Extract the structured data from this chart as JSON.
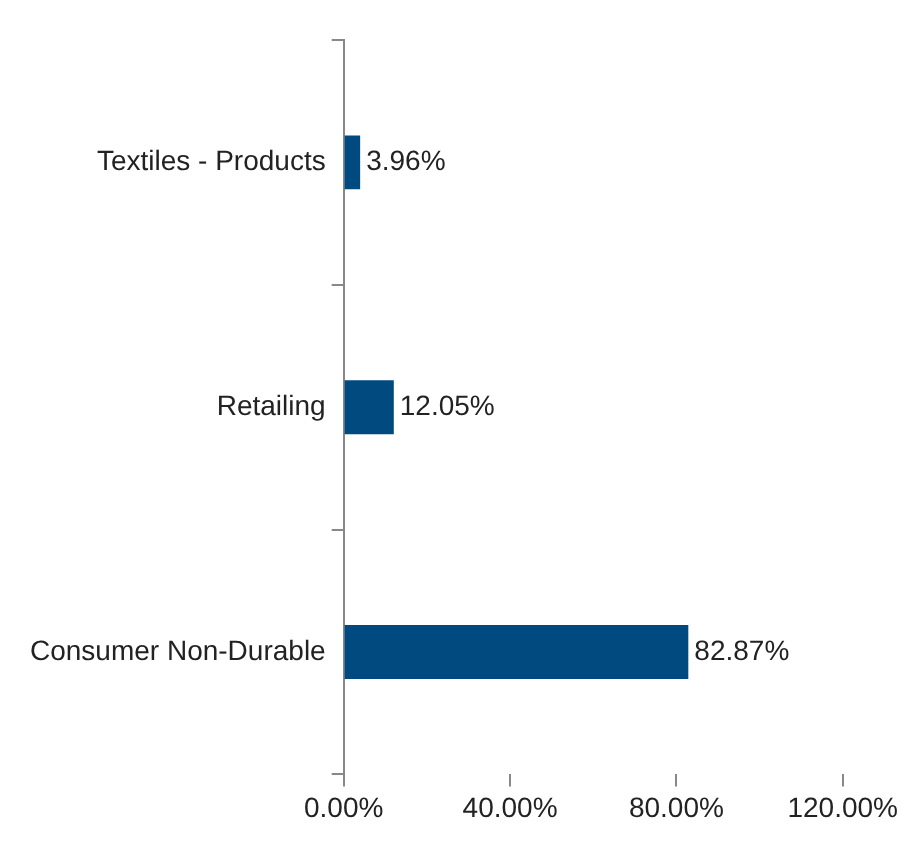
{
  "chart_data": {
    "type": "bar",
    "orientation": "horizontal",
    "categories": [
      "Textiles - Products",
      "Retailing",
      "Consumer Non-Durable"
    ],
    "values": [
      3.96,
      12.05,
      82.87
    ],
    "value_labels": [
      "3.96%",
      "12.05%",
      "82.87%"
    ],
    "color": "#004a80",
    "xlim": [
      0,
      120
    ],
    "xticks": [
      {
        "value": 0,
        "label": "0.00%"
      },
      {
        "value": 40,
        "label": "40.00%"
      },
      {
        "value": 80,
        "label": "80.00%"
      },
      {
        "value": 120,
        "label": "120.00%"
      }
    ],
    "grid": false,
    "legend": false
  }
}
